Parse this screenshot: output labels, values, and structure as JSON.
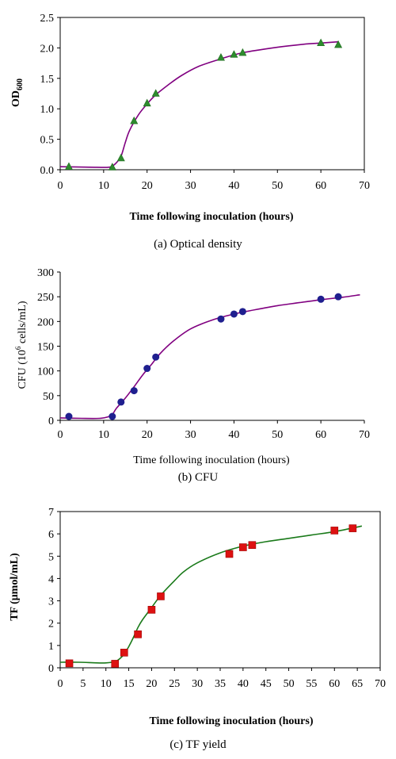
{
  "chart_data": [
    {
      "type": "scatter",
      "caption": "(a) Optical density",
      "xlabel": "Time following inoculation (hours)",
      "ylabel_main": "OD",
      "ylabel_sub": "600",
      "xlim": [
        0,
        70
      ],
      "ylim": [
        0,
        2.5
      ],
      "xticks": [
        0,
        10,
        20,
        30,
        40,
        50,
        60,
        70
      ],
      "yticks": [
        0,
        0.5,
        1,
        1.5,
        2,
        2.5
      ],
      "ytick_labels": [
        "0.0",
        "0.5",
        "1.0",
        "1.5",
        "2.0",
        "2.5"
      ],
      "marker": "triangle",
      "marker_color": "#2e8b2e",
      "curve_color": "#800080",
      "grid": false,
      "points": {
        "x": [
          2,
          12,
          14,
          17,
          20,
          22,
          37,
          40,
          42,
          60,
          64
        ],
        "y": [
          0.05,
          0.04,
          0.19,
          0.8,
          1.09,
          1.25,
          1.84,
          1.89,
          1.92,
          2.08,
          2.05
        ]
      },
      "fit": {
        "x": [
          0,
          8,
          11,
          12,
          13,
          14,
          15,
          16,
          18,
          20,
          22,
          25,
          28,
          32,
          37,
          42,
          50,
          56,
          60,
          64
        ],
        "y": [
          0.05,
          0.04,
          0.04,
          0.06,
          0.12,
          0.22,
          0.45,
          0.65,
          0.9,
          1.08,
          1.23,
          1.4,
          1.55,
          1.7,
          1.82,
          1.92,
          2.01,
          2.06,
          2.08,
          2.1
        ]
      }
    },
    {
      "type": "scatter",
      "caption": "(b) CFU",
      "xlabel": "Time following inoculation (hours)",
      "ylabel_pre": "CFU (10",
      "ylabel_sup": "6",
      "ylabel_post": " cells/mL)",
      "xlim": [
        0,
        70
      ],
      "ylim": [
        0,
        300
      ],
      "xticks": [
        0,
        10,
        20,
        30,
        40,
        50,
        60,
        70
      ],
      "yticks": [
        0,
        50,
        100,
        150,
        200,
        250,
        300
      ],
      "ytick_labels": [
        "0",
        "50",
        "100",
        "150",
        "200",
        "250",
        "300"
      ],
      "marker": "circle",
      "marker_color": "#1f1f8f",
      "curve_color": "#800080",
      "grid": false,
      "points": {
        "x": [
          2,
          12,
          14,
          17,
          20,
          22,
          37,
          40,
          42,
          60,
          64
        ],
        "y": [
          8,
          8,
          37,
          60,
          105,
          128,
          205,
          215,
          220,
          245,
          250
        ]
      },
      "fit": {
        "x": [
          0,
          5,
          9,
          11,
          12,
          13,
          15,
          17,
          19,
          21,
          23,
          26,
          30,
          35,
          40,
          45,
          50,
          55,
          60,
          65,
          69
        ],
        "y": [
          5,
          4,
          4,
          7,
          12,
          25,
          45,
          68,
          92,
          113,
          135,
          160,
          185,
          203,
          215,
          224,
          232,
          238,
          244,
          249,
          254
        ]
      }
    },
    {
      "type": "scatter",
      "caption": "(c) TF yield",
      "xlabel": "Time following inoculation (hours)",
      "ylabel": "TF (μmol/mL)",
      "xlim": [
        0,
        70
      ],
      "ylim": [
        0,
        7
      ],
      "xticks": [
        0,
        5,
        10,
        15,
        20,
        25,
        30,
        35,
        40,
        45,
        50,
        55,
        60,
        65,
        70
      ],
      "yticks": [
        0,
        1,
        2,
        3,
        4,
        5,
        6,
        7
      ],
      "ytick_labels": [
        "0",
        "1",
        "2",
        "3",
        "4",
        "5",
        "6",
        "7"
      ],
      "marker": "square",
      "marker_color": "#dd1111",
      "curve_color": "#1a7a1a",
      "grid": false,
      "points": {
        "x": [
          2,
          12,
          14,
          17,
          20,
          22,
          37,
          40,
          42,
          60,
          64
        ],
        "y": [
          0.2,
          0.18,
          0.68,
          1.5,
          2.6,
          3.2,
          5.1,
          5.4,
          5.5,
          6.15,
          6.25
        ]
      },
      "fit": {
        "x": [
          0,
          4,
          8,
          10,
          12,
          13,
          14,
          15,
          16,
          17,
          18,
          20,
          22,
          25,
          27,
          30,
          35,
          40,
          45,
          50,
          55,
          60,
          66
        ],
        "y": [
          0.25,
          0.25,
          0.22,
          0.22,
          0.28,
          0.4,
          0.62,
          0.95,
          1.35,
          1.8,
          2.15,
          2.7,
          3.25,
          3.9,
          4.3,
          4.7,
          5.15,
          5.45,
          5.65,
          5.8,
          5.95,
          6.1,
          6.35
        ]
      }
    }
  ]
}
